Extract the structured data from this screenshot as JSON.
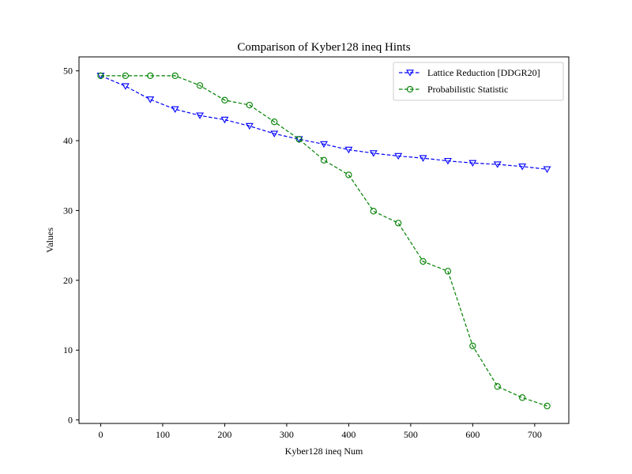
{
  "chart_data": {
    "type": "line",
    "title": "Comparison of Kyber128 ineq Hints",
    "xlabel": "Kyber128 ineq Num",
    "ylabel": "Values",
    "xlim": [
      -35,
      755
    ],
    "ylim": [
      -0.5,
      52
    ],
    "xticks": [
      0,
      100,
      200,
      300,
      400,
      500,
      600,
      700
    ],
    "yticks": [
      0,
      10,
      20,
      30,
      40,
      50
    ],
    "grid": false,
    "legend_position": "top-right",
    "x": [
      0,
      40,
      80,
      120,
      160,
      200,
      240,
      280,
      320,
      360,
      400,
      440,
      480,
      520,
      560,
      600,
      640,
      680,
      720
    ],
    "series": [
      {
        "name": "Lattice Reduction [DDGR20]",
        "color": "#0000ff",
        "marker": "triangle-down",
        "line_style": "dashed",
        "values": [
          49.3,
          47.8,
          45.9,
          44.5,
          43.6,
          43.0,
          42.1,
          41.0,
          40.2,
          39.5,
          38.7,
          38.2,
          37.8,
          37.5,
          37.1,
          36.8,
          36.6,
          36.3,
          35.9
        ]
      },
      {
        "name": "Probabilistic Statistic",
        "color": "#008000",
        "marker": "circle",
        "line_style": "dashed",
        "values": [
          49.3,
          49.3,
          49.3,
          49.3,
          47.9,
          45.8,
          45.1,
          42.7,
          40.2,
          37.2,
          35.1,
          29.9,
          28.2,
          22.7,
          21.3,
          10.6,
          4.8,
          3.2,
          2.0
        ]
      }
    ]
  }
}
